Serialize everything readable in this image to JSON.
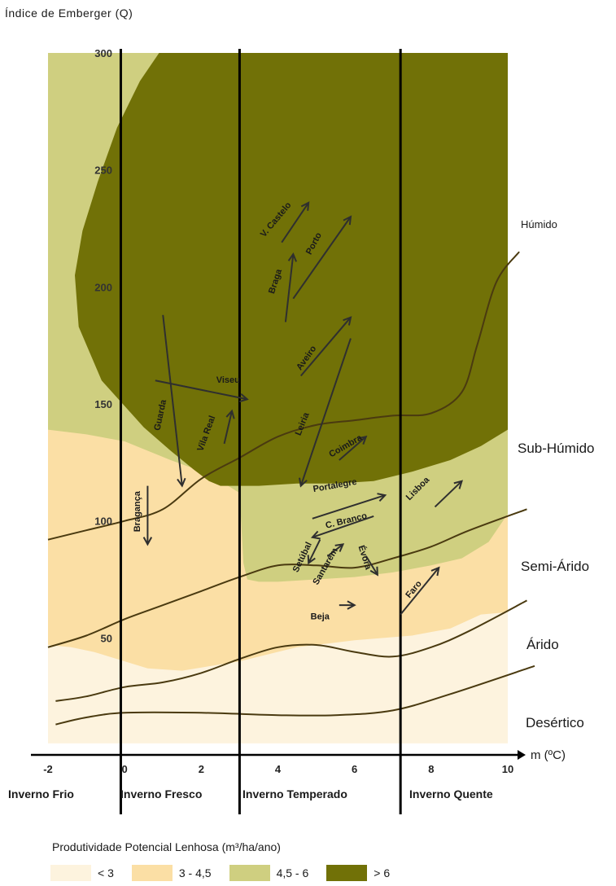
{
  "chart_data": {
    "type": "area",
    "ylabel": "Índice de Emberger (Q)",
    "xlabel": "m (ºC)",
    "xlim": [
      -2,
      10
    ],
    "ylim": [
      0,
      300
    ],
    "x_ticks": [
      -2,
      0,
      2,
      4,
      6,
      8,
      10
    ],
    "y_ticks": [
      50,
      100,
      150,
      200,
      250,
      300
    ],
    "winter_dividers": [
      -0.1,
      3,
      7.2
    ],
    "winter_classes": [
      "Inverno Frio",
      "Inverno Fresco",
      "Inverno Temperado",
      "Inverno Quente"
    ],
    "climate_zones": [
      "Húmido",
      "Sub-Húmido",
      "Semi-Árido",
      "Árido",
      "Desértico"
    ],
    "zone_boundaries": [
      {
        "between": "Desértico/Árido",
        "points": [
          [
            -1.8,
            13
          ],
          [
            -1,
            16
          ],
          [
            0,
            18
          ],
          [
            2,
            18
          ],
          [
            4,
            17
          ],
          [
            5.5,
            17
          ],
          [
            7,
            19
          ],
          [
            8.5,
            26
          ],
          [
            10.7,
            38
          ]
        ]
      },
      {
        "between": "Árido/Semi-Árido",
        "points": [
          [
            -1.8,
            23
          ],
          [
            -1,
            25
          ],
          [
            0,
            29
          ],
          [
            1,
            31
          ],
          [
            2,
            35
          ],
          [
            3,
            41
          ],
          [
            4,
            46
          ],
          [
            5,
            47
          ],
          [
            6,
            44
          ],
          [
            7,
            42
          ],
          [
            8,
            46
          ],
          [
            9,
            53
          ],
          [
            10.5,
            66
          ]
        ]
      },
      {
        "between": "Semi-Árido/Sub-Húmido",
        "points": [
          [
            -2,
            46
          ],
          [
            -1,
            51
          ],
          [
            0,
            58
          ],
          [
            1,
            64
          ],
          [
            2,
            70
          ],
          [
            3,
            76
          ],
          [
            4,
            81
          ],
          [
            5,
            81
          ],
          [
            6,
            80
          ],
          [
            7,
            84
          ],
          [
            8,
            89
          ],
          [
            9,
            96
          ],
          [
            10.5,
            105
          ]
        ]
      },
      {
        "between": "Sub-Húmido/Húmido",
        "points": [
          [
            -2,
            92
          ],
          [
            -1,
            96
          ],
          [
            0,
            100
          ],
          [
            1,
            105
          ],
          [
            2,
            118
          ],
          [
            3,
            127
          ],
          [
            4,
            136
          ],
          [
            5,
            141
          ],
          [
            6,
            143
          ],
          [
            7,
            145
          ],
          [
            8,
            146
          ],
          [
            8.8,
            155
          ],
          [
            9.2,
            175
          ],
          [
            9.7,
            202
          ],
          [
            10.3,
            215
          ]
        ]
      }
    ],
    "productivity_legend": {
      "title": "Produtividade Potencial Lenhosa (m³/ha/ano)",
      "classes": [
        {
          "label": "< 3",
          "color": "#fdf3de"
        },
        {
          "label": "3 - 4,5",
          "color": "#fbdfa5"
        },
        {
          "label": "4,5 - 6",
          "color": "#cfcf80"
        },
        {
          "label": "> 6",
          "color": "#717107"
        }
      ]
    },
    "productivity_regions": [
      {
        "class": "3 - 4,5",
        "points": [
          [
            -2,
            140
          ],
          [
            0,
            140
          ],
          [
            0,
            5
          ],
          [
            -2,
            5
          ]
        ]
      },
      {
        "class": "3 - 4,5",
        "points": [
          [
            0,
            140
          ],
          [
            10,
            140
          ],
          [
            10,
            5
          ],
          [
            0,
            5
          ]
        ]
      },
      {
        "class": "< 3",
        "points": [
          [
            -2,
            47
          ],
          [
            -1.4,
            46
          ],
          [
            -0.8,
            44
          ],
          [
            -0.2,
            41
          ],
          [
            0.6,
            37
          ],
          [
            1.5,
            36
          ],
          [
            3,
            40
          ],
          [
            4.5,
            46
          ],
          [
            6,
            49
          ],
          [
            7.5,
            51
          ],
          [
            8.5,
            54
          ],
          [
            9.3,
            60
          ],
          [
            10,
            61
          ],
          [
            10,
            5
          ],
          [
            -2,
            5
          ]
        ]
      },
      {
        "class": "4,5 - 6",
        "points": [
          [
            -2,
            300
          ],
          [
            10,
            300
          ],
          [
            10,
            103
          ],
          [
            9.5,
            91
          ],
          [
            8.8,
            84
          ],
          [
            8,
            81
          ],
          [
            7,
            78
          ],
          [
            6,
            76
          ],
          [
            5,
            75
          ],
          [
            4,
            74
          ],
          [
            3.5,
            74
          ],
          [
            3.2,
            75
          ],
          [
            3.1,
            82
          ],
          [
            3,
            112
          ],
          [
            2.2,
            120
          ],
          [
            1.2,
            126
          ],
          [
            0,
            134
          ],
          [
            -1,
            137
          ],
          [
            -2,
            139
          ]
        ]
      },
      {
        "class": "> 6",
        "points": [
          [
            0.9,
            300
          ],
          [
            10,
            300
          ],
          [
            10,
            139
          ],
          [
            9.3,
            132
          ],
          [
            8.5,
            126
          ],
          [
            7.5,
            121
          ],
          [
            6.5,
            117
          ],
          [
            5.5,
            116
          ],
          [
            4.5,
            116
          ],
          [
            3.5,
            115
          ],
          [
            3,
            115
          ],
          [
            2.5,
            115
          ],
          [
            2.2,
            117
          ],
          [
            1.8,
            122
          ],
          [
            1.2,
            130
          ],
          [
            0.5,
            140
          ],
          [
            -0.6,
            160
          ],
          [
            -1.2,
            183
          ],
          [
            -1.3,
            205
          ],
          [
            -1.1,
            224
          ],
          [
            -0.7,
            245
          ],
          [
            -0.2,
            268
          ],
          [
            0.4,
            288
          ],
          [
            0.9,
            300
          ]
        ]
      }
    ],
    "region_shifts": [
      {
        "name": "Viseu",
        "label_at": [
          2.7,
          159
        ],
        "label_angle": 0,
        "from": [
          0.8,
          160
        ],
        "to": [
          3.2,
          152
        ]
      },
      {
        "name": "Guarda",
        "label_at": [
          1.0,
          145
        ],
        "label_angle": -78,
        "from": [
          1.0,
          188
        ],
        "to": [
          1.5,
          115
        ]
      },
      {
        "name": "Vila Real",
        "label_at": [
          2.2,
          137
        ],
        "label_angle": -70,
        "from": [
          2.6,
          133
        ],
        "to": [
          2.8,
          147
        ]
      },
      {
        "name": "Bragança",
        "label_at": [
          0.4,
          104
        ],
        "label_angle": -90,
        "from": [
          0.6,
          115
        ],
        "to": [
          0.6,
          90
        ]
      },
      {
        "name": "V. Castelo",
        "label_at": [
          4.0,
          228
        ],
        "label_angle": -50,
        "from": [
          4.1,
          219
        ],
        "to": [
          4.8,
          236
        ]
      },
      {
        "name": "Braga",
        "label_at": [
          4.0,
          202
        ],
        "label_angle": -72,
        "from": [
          4.2,
          185
        ],
        "to": [
          4.4,
          214
        ]
      },
      {
        "name": "Porto",
        "label_at": [
          5.0,
          218
        ],
        "label_angle": -62,
        "from": [
          4.4,
          195
        ],
        "to": [
          5.9,
          230
        ]
      },
      {
        "name": "Aveiro",
        "label_at": [
          4.8,
          169
        ],
        "label_angle": -55,
        "from": [
          4.6,
          162
        ],
        "to": [
          5.9,
          187
        ]
      },
      {
        "name": "Leiria",
        "label_at": [
          4.7,
          141
        ],
        "label_angle": -68,
        "from": [
          5.9,
          178
        ],
        "to": [
          4.6,
          115
        ]
      },
      {
        "name": "Coimbra",
        "label_at": [
          5.8,
          131
        ],
        "label_angle": -30,
        "from": [
          5.6,
          126
        ],
        "to": [
          6.3,
          136
        ]
      },
      {
        "name": "Portalegre",
        "label_at": [
          5.5,
          114
        ],
        "label_angle": -10,
        "from": [
          4.9,
          101
        ],
        "to": [
          6.8,
          111
        ]
      },
      {
        "name": "C. Branco",
        "label_at": [
          5.8,
          99
        ],
        "label_angle": -14,
        "from": [
          6.5,
          102
        ],
        "to": [
          4.9,
          93
        ]
      },
      {
        "name": "Setúbal",
        "label_at": [
          4.7,
          84
        ],
        "label_angle": -64,
        "from": [
          5.1,
          92
        ],
        "to": [
          4.8,
          82
        ]
      },
      {
        "name": "Santarém",
        "label_at": [
          5.3,
          80
        ],
        "label_angle": -60,
        "from": [
          5.3,
          85
        ],
        "to": [
          5.7,
          90
        ]
      },
      {
        "name": "Évora",
        "label_at": [
          6.2,
          84
        ],
        "label_angle": 72,
        "from": [
          6.3,
          85
        ],
        "to": [
          6.6,
          77
        ]
      },
      {
        "name": "Lisboa",
        "label_at": [
          7.7,
          113
        ],
        "label_angle": -45,
        "from": [
          8.1,
          106
        ],
        "to": [
          8.8,
          117
        ]
      },
      {
        "name": "Beja",
        "label_at": [
          5.1,
          58
        ],
        "label_angle": 0,
        "from": [
          5.6,
          64
        ],
        "to": [
          6.0,
          64
        ]
      },
      {
        "name": "Faro",
        "label_at": [
          7.6,
          70
        ],
        "label_angle": -50,
        "from": [
          7.2,
          60
        ],
        "to": [
          8.2,
          80
        ]
      }
    ]
  }
}
